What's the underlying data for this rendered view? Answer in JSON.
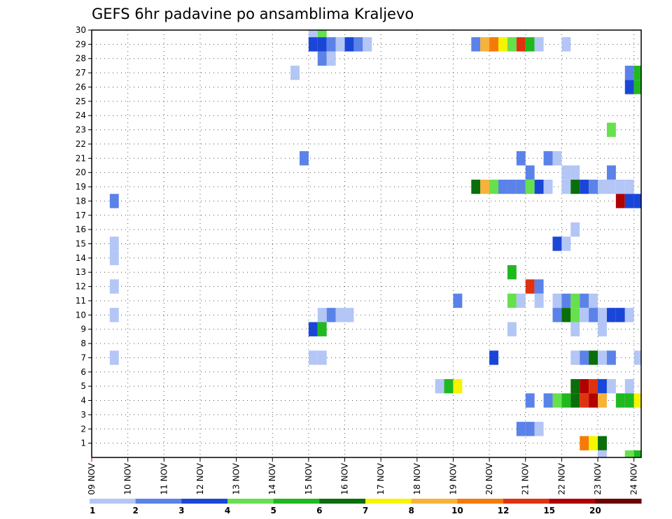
{
  "chart_data": {
    "type": "heatmap",
    "title": "GEFS 6hr padavine po ansamblima Kraljevo",
    "xlabel": "",
    "ylabel": "",
    "x_ticks": [
      "09 NOV",
      "10 NOV",
      "11 NOV",
      "12 NOV",
      "13 NOV",
      "14 NOV",
      "15 NOV",
      "16 NOV",
      "17 NOV",
      "18 NOV",
      "19 NOV",
      "20 NOV",
      "21 NOV",
      "22 NOV",
      "23 NOV",
      "24 NOV"
    ],
    "y_ticks": [
      1,
      2,
      3,
      4,
      5,
      6,
      7,
      8,
      9,
      10,
      11,
      12,
      13,
      14,
      15,
      16,
      17,
      18,
      19,
      20,
      21,
      22,
      23,
      24,
      25,
      26,
      27,
      28,
      29,
      30
    ],
    "xlim_days": [
      0,
      15.2
    ],
    "ylim": [
      0,
      30
    ],
    "time_step_hours": 6,
    "grid": "dotted",
    "legend": {
      "position": "bottom",
      "levels": [
        "1",
        "2",
        "3",
        "4",
        "5",
        "6",
        "7",
        "8",
        "10",
        "12",
        "15",
        "20"
      ],
      "colors": [
        "#b3c6f5",
        "#5a82e8",
        "#1a46d8",
        "#66e04d",
        "#1fb91f",
        "#0a6e0a",
        "#f5f500",
        "#f7b23a",
        "#f57a0a",
        "#e0320f",
        "#b00000",
        "#6e0000"
      ]
    },
    "colors": {
      "c1": "#b3c6f5",
      "c2": "#5a82e8",
      "c3": "#1a46d8",
      "c4": "#66e04d",
      "c5": "#1fb91f",
      "c6": "#0a6e0a",
      "c7": "#f5f500",
      "c8": "#f7b23a",
      "c10": "#f57a0a",
      "c12": "#e0320f",
      "c15": "#b00000",
      "c20": "#6e0000"
    },
    "cells": [
      {
        "member": 30,
        "day": 6.0,
        "cls": 1
      },
      {
        "member": 30,
        "day": 6.25,
        "cls": 4
      },
      {
        "member": 29,
        "day": 6.0,
        "cls": 3
      },
      {
        "member": 29,
        "day": 6.25,
        "cls": 3
      },
      {
        "member": 29,
        "day": 6.5,
        "cls": 2
      },
      {
        "member": 29,
        "day": 6.75,
        "cls": 1
      },
      {
        "member": 29,
        "day": 7.0,
        "cls": 3
      },
      {
        "member": 29,
        "day": 7.25,
        "cls": 2
      },
      {
        "member": 29,
        "day": 7.5,
        "cls": 1
      },
      {
        "member": 29,
        "day": 10.5,
        "cls": 2
      },
      {
        "member": 29,
        "day": 10.75,
        "cls": 8
      },
      {
        "member": 29,
        "day": 11.0,
        "cls": 10
      },
      {
        "member": 29,
        "day": 11.25,
        "cls": 7
      },
      {
        "member": 29,
        "day": 11.5,
        "cls": 4
      },
      {
        "member": 29,
        "day": 11.75,
        "cls": 12
      },
      {
        "member": 29,
        "day": 12.0,
        "cls": 5
      },
      {
        "member": 29,
        "day": 12.25,
        "cls": 1
      },
      {
        "member": 29,
        "day": 13.0,
        "cls": 1
      },
      {
        "member": 28,
        "day": 6.25,
        "cls": 2
      },
      {
        "member": 28,
        "day": 6.5,
        "cls": 1
      },
      {
        "member": 27,
        "day": 5.5,
        "cls": 1
      },
      {
        "member": 27,
        "day": 14.75,
        "cls": 2
      },
      {
        "member": 27,
        "day": 15.0,
        "cls": 5
      },
      {
        "member": 26,
        "day": 14.75,
        "cls": 3
      },
      {
        "member": 26,
        "day": 15.0,
        "cls": 5
      },
      {
        "member": 23,
        "day": 14.25,
        "cls": 4
      },
      {
        "member": 21,
        "day": 5.75,
        "cls": 2
      },
      {
        "member": 21,
        "day": 11.75,
        "cls": 2
      },
      {
        "member": 21,
        "day": 12.5,
        "cls": 2
      },
      {
        "member": 21,
        "day": 12.75,
        "cls": 1
      },
      {
        "member": 20,
        "day": 12.0,
        "cls": 2
      },
      {
        "member": 20,
        "day": 13.0,
        "cls": 1
      },
      {
        "member": 20,
        "day": 13.25,
        "cls": 1
      },
      {
        "member": 20,
        "day": 14.25,
        "cls": 2
      },
      {
        "member": 19,
        "day": 10.5,
        "cls": 6
      },
      {
        "member": 19,
        "day": 10.75,
        "cls": 8
      },
      {
        "member": 19,
        "day": 11.0,
        "cls": 4
      },
      {
        "member": 19,
        "day": 11.25,
        "cls": 2
      },
      {
        "member": 19,
        "day": 11.5,
        "cls": 2
      },
      {
        "member": 19,
        "day": 11.75,
        "cls": 2
      },
      {
        "member": 19,
        "day": 12.0,
        "cls": 4
      },
      {
        "member": 19,
        "day": 12.25,
        "cls": 3
      },
      {
        "member": 19,
        "day": 12.5,
        "cls": 1
      },
      {
        "member": 19,
        "day": 13.0,
        "cls": 1
      },
      {
        "member": 19,
        "day": 13.25,
        "cls": 6
      },
      {
        "member": 19,
        "day": 13.5,
        "cls": 3
      },
      {
        "member": 19,
        "day": 13.75,
        "cls": 2
      },
      {
        "member": 19,
        "day": 14.0,
        "cls": 1
      },
      {
        "member": 19,
        "day": 14.25,
        "cls": 1
      },
      {
        "member": 19,
        "day": 14.5,
        "cls": 1
      },
      {
        "member": 19,
        "day": 14.75,
        "cls": 1
      },
      {
        "member": 18,
        "day": 0.5,
        "cls": 2
      },
      {
        "member": 18,
        "day": 14.5,
        "cls": 15
      },
      {
        "member": 18,
        "day": 14.75,
        "cls": 3
      },
      {
        "member": 18,
        "day": 15.0,
        "cls": 3
      },
      {
        "member": 16,
        "day": 13.25,
        "cls": 1
      },
      {
        "member": 15,
        "day": 0.5,
        "cls": 1
      },
      {
        "member": 15,
        "day": 12.75,
        "cls": 3
      },
      {
        "member": 15,
        "day": 13.0,
        "cls": 1
      },
      {
        "member": 14,
        "day": 0.5,
        "cls": 1
      },
      {
        "member": 13,
        "day": 11.5,
        "cls": 5
      },
      {
        "member": 12,
        "day": 0.5,
        "cls": 1
      },
      {
        "member": 12,
        "day": 12.0,
        "cls": 12
      },
      {
        "member": 12,
        "day": 12.25,
        "cls": 2
      },
      {
        "member": 11,
        "day": 10.0,
        "cls": 2
      },
      {
        "member": 11,
        "day": 11.5,
        "cls": 4
      },
      {
        "member": 11,
        "day": 11.75,
        "cls": 1
      },
      {
        "member": 11,
        "day": 12.25,
        "cls": 1
      },
      {
        "member": 11,
        "day": 12.75,
        "cls": 1
      },
      {
        "member": 11,
        "day": 13.0,
        "cls": 2
      },
      {
        "member": 11,
        "day": 13.25,
        "cls": 4
      },
      {
        "member": 11,
        "day": 13.5,
        "cls": 2
      },
      {
        "member": 11,
        "day": 13.75,
        "cls": 1
      },
      {
        "member": 10,
        "day": 0.5,
        "cls": 1
      },
      {
        "member": 10,
        "day": 6.25,
        "cls": 1
      },
      {
        "member": 10,
        "day": 6.5,
        "cls": 2
      },
      {
        "member": 10,
        "day": 6.75,
        "cls": 1
      },
      {
        "member": 10,
        "day": 7.0,
        "cls": 1
      },
      {
        "member": 10,
        "day": 12.75,
        "cls": 2
      },
      {
        "member": 10,
        "day": 13.0,
        "cls": 6
      },
      {
        "member": 10,
        "day": 13.25,
        "cls": 4
      },
      {
        "member": 10,
        "day": 13.5,
        "cls": 1
      },
      {
        "member": 10,
        "day": 13.75,
        "cls": 2
      },
      {
        "member": 10,
        "day": 14.0,
        "cls": 1
      },
      {
        "member": 10,
        "day": 14.25,
        "cls": 3
      },
      {
        "member": 10,
        "day": 14.5,
        "cls": 3
      },
      {
        "member": 10,
        "day": 14.75,
        "cls": 1
      },
      {
        "member": 9,
        "day": 6.0,
        "cls": 3
      },
      {
        "member": 9,
        "day": 6.25,
        "cls": 5
      },
      {
        "member": 9,
        "day": 11.5,
        "cls": 1
      },
      {
        "member": 9,
        "day": 13.25,
        "cls": 1
      },
      {
        "member": 9,
        "day": 14.0,
        "cls": 1
      },
      {
        "member": 7,
        "day": 0.5,
        "cls": 1
      },
      {
        "member": 7,
        "day": 6.0,
        "cls": 1
      },
      {
        "member": 7,
        "day": 6.25,
        "cls": 1
      },
      {
        "member": 7,
        "day": 11.0,
        "cls": 3
      },
      {
        "member": 7,
        "day": 13.25,
        "cls": 1
      },
      {
        "member": 7,
        "day": 13.5,
        "cls": 2
      },
      {
        "member": 7,
        "day": 13.75,
        "cls": 6
      },
      {
        "member": 7,
        "day": 14.0,
        "cls": 1
      },
      {
        "member": 7,
        "day": 14.25,
        "cls": 2
      },
      {
        "member": 7,
        "day": 15.0,
        "cls": 1
      },
      {
        "member": 5,
        "day": 9.5,
        "cls": 1
      },
      {
        "member": 5,
        "day": 9.75,
        "cls": 5
      },
      {
        "member": 5,
        "day": 10.0,
        "cls": 7
      },
      {
        "member": 5,
        "day": 13.25,
        "cls": 6
      },
      {
        "member": 5,
        "day": 13.5,
        "cls": 15
      },
      {
        "member": 5,
        "day": 13.75,
        "cls": 12
      },
      {
        "member": 5,
        "day": 14.0,
        "cls": 3
      },
      {
        "member": 5,
        "day": 14.25,
        "cls": 1
      },
      {
        "member": 5,
        "day": 14.75,
        "cls": 1
      },
      {
        "member": 4,
        "day": 12.0,
        "cls": 2
      },
      {
        "member": 4,
        "day": 12.5,
        "cls": 2
      },
      {
        "member": 4,
        "day": 12.75,
        "cls": 4
      },
      {
        "member": 4,
        "day": 13.0,
        "cls": 5
      },
      {
        "member": 4,
        "day": 13.25,
        "cls": 6
      },
      {
        "member": 4,
        "day": 13.5,
        "cls": 12
      },
      {
        "member": 4,
        "day": 13.75,
        "cls": 15
      },
      {
        "member": 4,
        "day": 14.0,
        "cls": 8
      },
      {
        "member": 4,
        "day": 14.5,
        "cls": 5
      },
      {
        "member": 4,
        "day": 14.75,
        "cls": 5
      },
      {
        "member": 4,
        "day": 15.0,
        "cls": 7
      },
      {
        "member": 2,
        "day": 11.75,
        "cls": 2
      },
      {
        "member": 2,
        "day": 12.0,
        "cls": 2
      },
      {
        "member": 2,
        "day": 12.25,
        "cls": 1
      },
      {
        "member": 1,
        "day": 13.5,
        "cls": 10
      },
      {
        "member": 1,
        "day": 13.75,
        "cls": 7
      },
      {
        "member": 1,
        "day": 14.0,
        "cls": 6
      },
      {
        "member": 0,
        "day": 14.0,
        "cls": 1
      },
      {
        "member": 0,
        "day": 14.75,
        "cls": 4
      },
      {
        "member": 0,
        "day": 15.0,
        "cls": 5
      }
    ]
  }
}
